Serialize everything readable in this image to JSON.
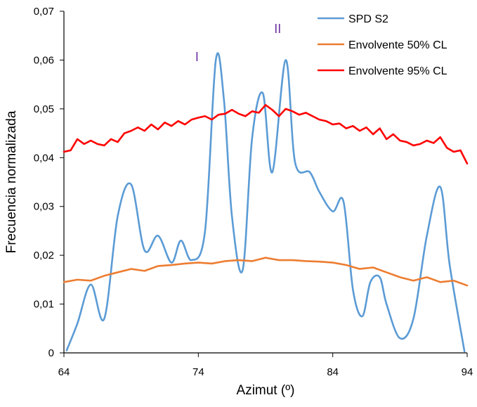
{
  "chart_data": {
    "type": "line",
    "title": "",
    "xlabel": "Azimut (º)",
    "ylabel": "Frecuencia normalizada",
    "xlim": [
      64,
      94
    ],
    "ylim": [
      0,
      0.07
    ],
    "x_ticks": [
      64,
      74,
      84,
      94
    ],
    "x_tick_labels": [
      "64",
      "74",
      "84",
      "94"
    ],
    "y_ticks": [
      0,
      0.01,
      0.02,
      0.03,
      0.04,
      0.05,
      0.06,
      0.07
    ],
    "y_tick_labels": [
      "0",
      "0,01",
      "0,02",
      "0,03",
      "0,04",
      "0,05",
      "0,06",
      "0,07"
    ],
    "grid": false,
    "legend_position": "top-right",
    "annotations": [
      {
        "text": "I",
        "x": 73.9,
        "y": 0.0598,
        "color": "#7030a0"
      },
      {
        "text": "II",
        "x": 79.9,
        "y": 0.0655,
        "color": "#7030a0"
      }
    ],
    "series": [
      {
        "name": "SPD S2",
        "color": "#5b9bd5",
        "smooth": true,
        "x": [
          64.2,
          65,
          66,
          67,
          68,
          69,
          70,
          71,
          72,
          72.7,
          73.5,
          74.5,
          75.3,
          75.9,
          76.5,
          77.3,
          78,
          78.8,
          79.5,
          80.5,
          81.2,
          82.3,
          83,
          84,
          84.8,
          85.5,
          86.2,
          86.8,
          87.5,
          88,
          89,
          90,
          91,
          92,
          92.7,
          93.8
        ],
        "y": [
          0.0005,
          0.006,
          0.014,
          0.007,
          0.028,
          0.0345,
          0.021,
          0.024,
          0.0185,
          0.023,
          0.019,
          0.025,
          0.06,
          0.052,
          0.028,
          0.017,
          0.044,
          0.0532,
          0.037,
          0.06,
          0.039,
          0.037,
          0.033,
          0.029,
          0.031,
          0.013,
          0.0075,
          0.0145,
          0.0155,
          0.01,
          0.003,
          0.007,
          0.024,
          0.034,
          0.018,
          0.0003
        ]
      },
      {
        "name": "Envolvente 50% CL",
        "color": "#ed7d31",
        "smooth": false,
        "x": [
          64,
          65,
          66,
          67,
          68,
          69,
          70,
          71,
          72,
          73,
          74,
          75,
          76,
          77,
          78,
          79,
          80,
          81,
          82,
          83,
          84,
          85,
          86,
          87,
          88,
          89,
          90,
          91,
          92,
          93,
          94
        ],
        "y": [
          0.0145,
          0.015,
          0.0148,
          0.0158,
          0.0165,
          0.0172,
          0.0168,
          0.0178,
          0.018,
          0.0183,
          0.0185,
          0.0183,
          0.0188,
          0.019,
          0.0188,
          0.0195,
          0.019,
          0.019,
          0.0188,
          0.0187,
          0.0185,
          0.018,
          0.0172,
          0.0175,
          0.0165,
          0.0155,
          0.0148,
          0.0155,
          0.0145,
          0.0148,
          0.0138
        ]
      },
      {
        "name": "Envolvente 95% CL",
        "color": "#ff0000",
        "smooth": false,
        "x": [
          64,
          64.5,
          65,
          65.5,
          66,
          66.5,
          67,
          67.5,
          68,
          68.5,
          69,
          69.5,
          70,
          70.5,
          71,
          71.5,
          72,
          72.5,
          73,
          73.5,
          74,
          74.5,
          75,
          75.5,
          76,
          76.5,
          77,
          77.5,
          78,
          78.5,
          79,
          79.5,
          80,
          80.5,
          81,
          81.5,
          82,
          82.5,
          83,
          83.5,
          84,
          84.5,
          85,
          85.5,
          86,
          86.5,
          87,
          87.5,
          88,
          88.5,
          89,
          89.5,
          90,
          90.5,
          91,
          91.5,
          92,
          92.5,
          93,
          93.5,
          94
        ],
        "y": [
          0.0412,
          0.0415,
          0.0438,
          0.0428,
          0.0435,
          0.0428,
          0.0425,
          0.0438,
          0.0432,
          0.045,
          0.0455,
          0.0462,
          0.0455,
          0.0468,
          0.0458,
          0.0472,
          0.0465,
          0.0475,
          0.0468,
          0.0478,
          0.0482,
          0.0485,
          0.0478,
          0.0488,
          0.049,
          0.0498,
          0.049,
          0.0485,
          0.0495,
          0.0492,
          0.0508,
          0.0498,
          0.0485,
          0.05,
          0.0495,
          0.0488,
          0.0492,
          0.0485,
          0.0478,
          0.0475,
          0.0468,
          0.047,
          0.046,
          0.0465,
          0.0455,
          0.0462,
          0.0448,
          0.046,
          0.0438,
          0.0448,
          0.0435,
          0.0432,
          0.0425,
          0.0428,
          0.0435,
          0.043,
          0.0442,
          0.042,
          0.0412,
          0.0415,
          0.0388
        ]
      }
    ]
  }
}
